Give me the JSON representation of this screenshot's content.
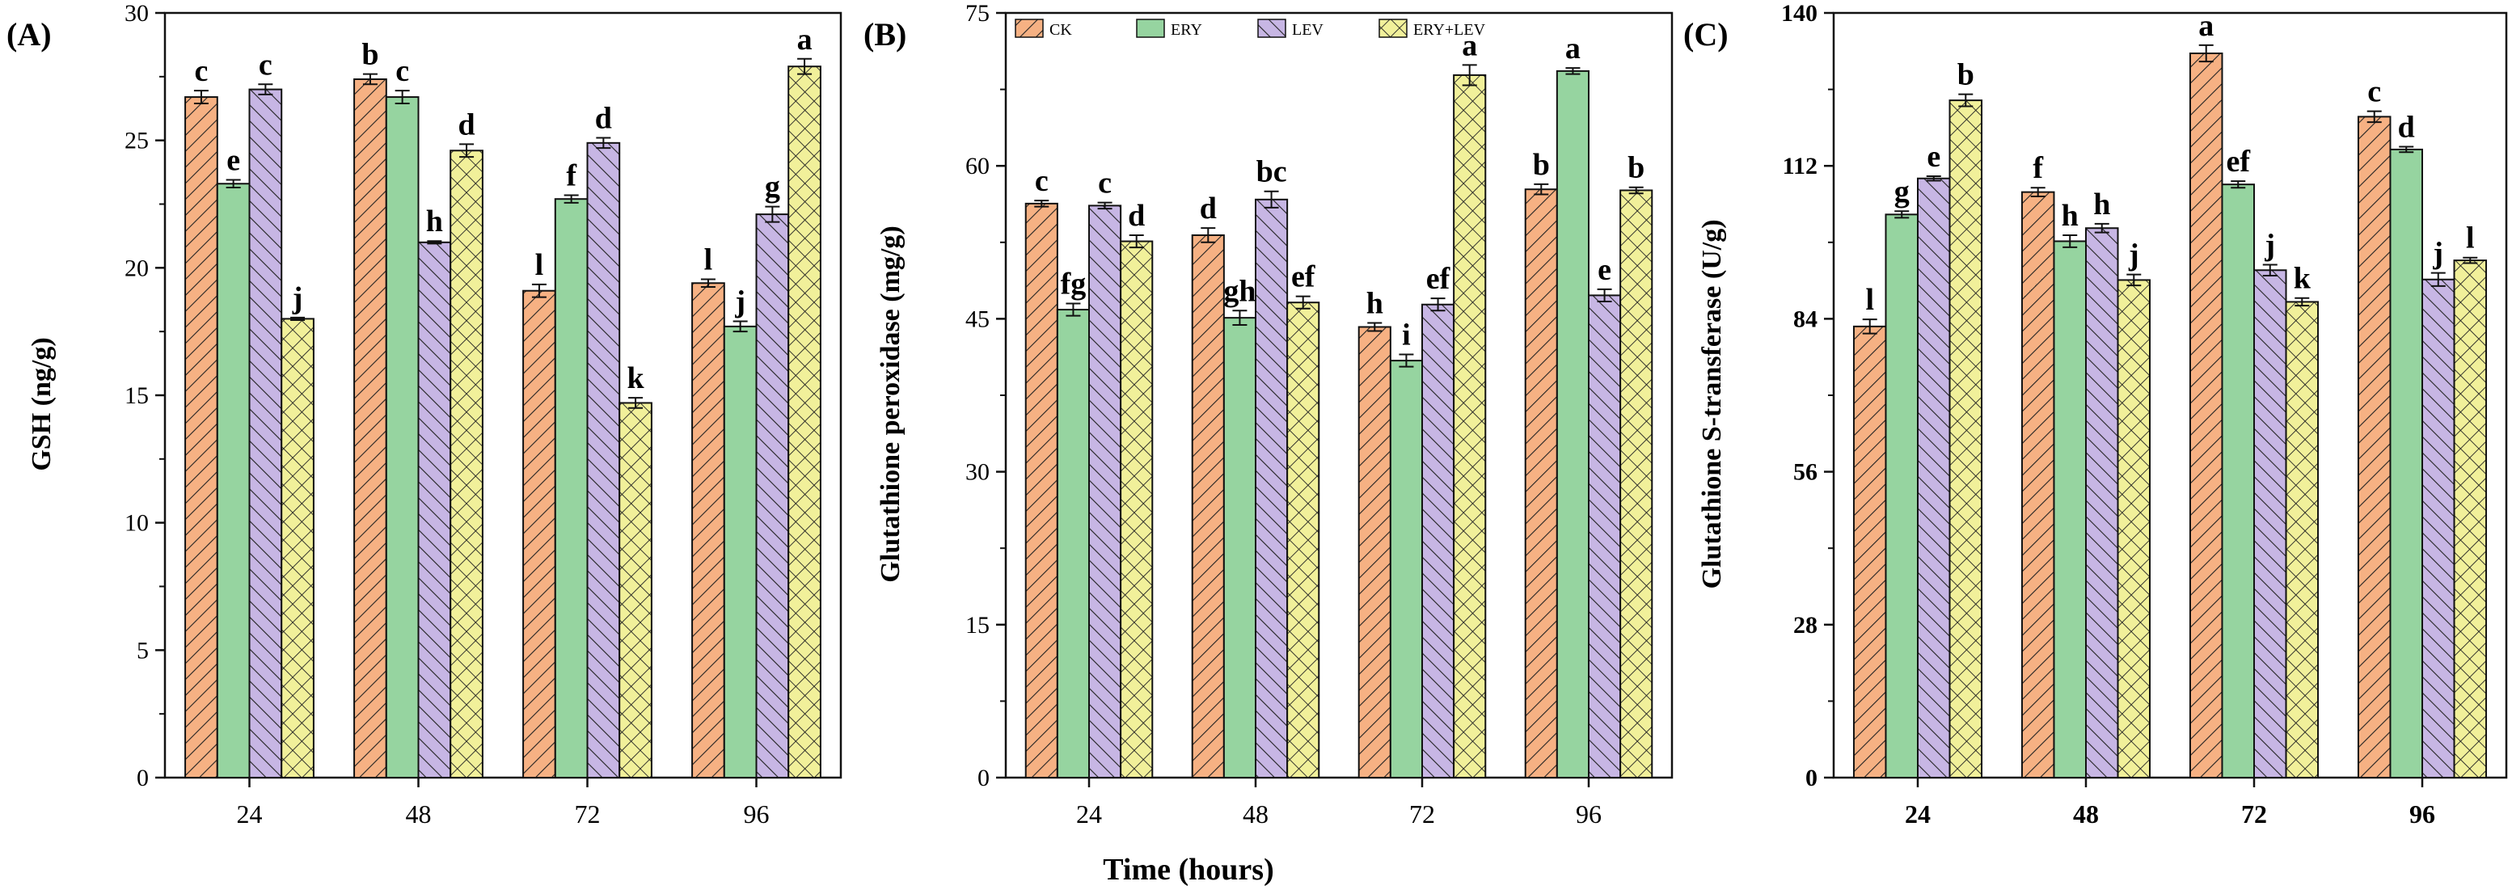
{
  "figure_xlabel": "Time (hours)",
  "colors": {
    "CK": "#f6b183",
    "ERY": "#96d4a0",
    "LEV": "#c7b6e4",
    "ERY+LEV": "#f1f09a",
    "stroke": "#111111"
  },
  "chart_data": [
    {
      "panel_label": "(A)",
      "type": "bar",
      "title": "",
      "xlabel": "",
      "ylabel": "GSH (ng/g)",
      "categories": [
        "24",
        "48",
        "72",
        "96"
      ],
      "ylim": [
        0,
        30
      ],
      "yticks": [
        0,
        5,
        10,
        15,
        20,
        25,
        30
      ],
      "series": [
        {
          "name": "CK",
          "values": [
            26.7,
            27.4,
            19.1,
            19.4
          ],
          "errors": [
            0.25,
            0.2,
            0.25,
            0.15
          ],
          "letters": [
            "c",
            "b",
            "l",
            "l"
          ]
        },
        {
          "name": "ERY",
          "values": [
            23.3,
            26.7,
            22.7,
            17.7
          ],
          "errors": [
            0.15,
            0.25,
            0.15,
            0.2
          ],
          "letters": [
            "e",
            "c",
            "f",
            "j"
          ]
        },
        {
          "name": "LEV",
          "values": [
            27.0,
            21.0,
            24.9,
            22.1
          ],
          "errors": [
            0.2,
            0.05,
            0.2,
            0.3
          ],
          "letters": [
            "c",
            "h",
            "d",
            "g"
          ]
        },
        {
          "name": "ERY+LEV",
          "values": [
            18.0,
            24.6,
            14.7,
            27.9
          ],
          "errors": [
            0.05,
            0.25,
            0.2,
            0.3
          ],
          "letters": [
            "j",
            "d",
            "k",
            "a"
          ]
        }
      ]
    },
    {
      "panel_label": "(B)",
      "type": "bar",
      "title": "",
      "xlabel": "",
      "ylabel": "Glutathione peroxidase (mg/g)",
      "categories": [
        "24",
        "48",
        "72",
        "96"
      ],
      "ylim": [
        0,
        75
      ],
      "yticks": [
        0,
        15,
        30,
        45,
        60,
        75
      ],
      "legend": {
        "position": "top-left",
        "entries": [
          "CK",
          "ERY",
          "LEV",
          "ERY+LEV"
        ]
      },
      "series": [
        {
          "name": "CK",
          "values": [
            56.3,
            53.2,
            44.2,
            57.7
          ],
          "errors": [
            0.3,
            0.7,
            0.4,
            0.5
          ],
          "letters": [
            "c",
            "d",
            "h",
            "b"
          ]
        },
        {
          "name": "ERY",
          "values": [
            45.9,
            45.1,
            40.9,
            69.3
          ],
          "errors": [
            0.6,
            0.7,
            0.6,
            0.3
          ],
          "letters": [
            "fg",
            "gh",
            "i",
            "a"
          ]
        },
        {
          "name": "LEV",
          "values": [
            56.1,
            56.7,
            46.4,
            47.3
          ],
          "errors": [
            0.3,
            0.8,
            0.6,
            0.6
          ],
          "letters": [
            "c",
            "bc",
            "ef",
            "e"
          ]
        },
        {
          "name": "ERY+LEV",
          "values": [
            52.6,
            46.6,
            68.9,
            57.6
          ],
          "errors": [
            0.6,
            0.6,
            1.0,
            0.3
          ],
          "letters": [
            "d",
            "ef",
            "a",
            "b"
          ]
        }
      ]
    },
    {
      "panel_label": "(C)",
      "type": "bar",
      "title": "",
      "xlabel": "",
      "ylabel": "Glutathione S-transferase (U/g)",
      "categories": [
        "24",
        "48",
        "72",
        "96"
      ],
      "ylim": [
        0,
        140
      ],
      "yticks": [
        0,
        28,
        56,
        84,
        112,
        140
      ],
      "series": [
        {
          "name": "CK",
          "values": [
            82.6,
            107.2,
            132.6,
            121.0
          ],
          "errors": [
            1.3,
            0.8,
            1.5,
            1.0
          ],
          "letters": [
            "l",
            "f",
            "a",
            "c"
          ]
        },
        {
          "name": "ERY",
          "values": [
            103.1,
            98.2,
            108.6,
            115.0
          ],
          "errors": [
            0.6,
            1.1,
            0.6,
            0.5
          ],
          "letters": [
            "g",
            "h",
            "ef",
            "d"
          ]
        },
        {
          "name": "LEV",
          "values": [
            109.7,
            100.6,
            92.9,
            91.2
          ],
          "errors": [
            0.4,
            0.8,
            1.0,
            1.2
          ],
          "letters": [
            "e",
            "h",
            "j",
            "j"
          ]
        },
        {
          "name": "ERY+LEV",
          "values": [
            124.0,
            91.1,
            87.1,
            94.7
          ],
          "errors": [
            1.1,
            1.0,
            0.7,
            0.5
          ],
          "letters": [
            "b",
            "j",
            "k",
            "l"
          ]
        }
      ]
    }
  ]
}
